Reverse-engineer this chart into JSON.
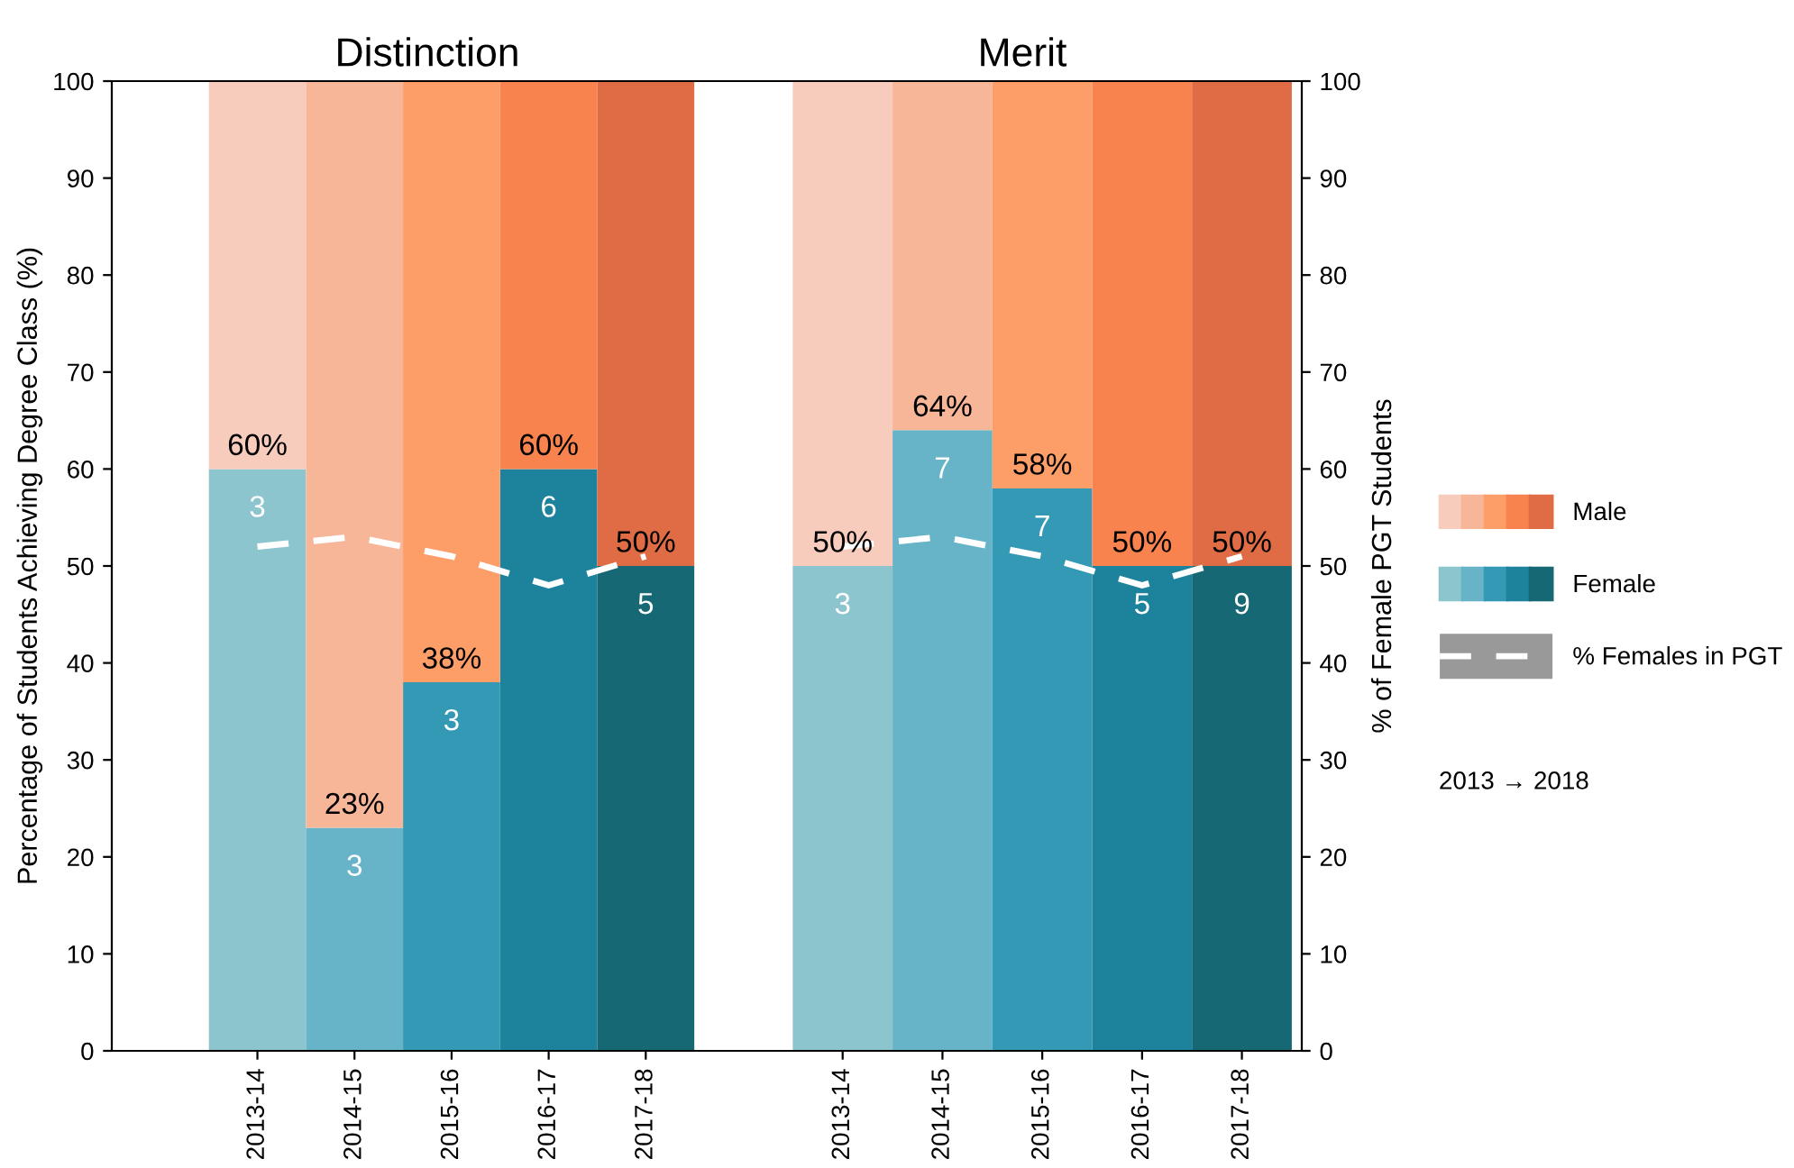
{
  "chart_data": [
    {
      "type": "bar",
      "title": "Distinction",
      "ylabel": "Percentage of Students Achieving Degree Class (%)",
      "stacked": true,
      "categories": [
        "2013-14",
        "2014-15",
        "2015-16",
        "2016-17",
        "2017-18"
      ],
      "ylim": [
        0,
        100
      ],
      "yticks": [
        0,
        10,
        20,
        30,
        40,
        50,
        60,
        70,
        80,
        90,
        100
      ],
      "grid": false,
      "series": [
        {
          "colors": [
            "#8dc5cf",
            "#67b4c8",
            "#3499b4",
            "#1d839c",
            "#166874"
          ],
          "values": [
            60,
            23,
            38,
            60,
            50
          ],
          "value_labels": [
            "60%",
            "23%",
            "38%",
            "60%",
            "50%"
          ]
        },
        {
          "colors": [
            "#f7ccbc",
            "#f8b699",
            "#fd9d68",
            "#f9834e",
            "#df6c44"
          ],
          "values": [
            40,
            77,
            62,
            40,
            50
          ]
        },
        {
          "type": "line",
          "color": "#ffffff",
          "line_style": "dashed",
          "values": [
            52,
            53,
            51,
            48,
            51
          ]
        }
      ],
      "annotations": [
        {
          "text": "3",
          "x": "2013-14",
          "y": 60
        },
        {
          "text": "3",
          "x": "2014-15",
          "y": 23
        },
        {
          "text": "3",
          "x": "2015-16",
          "y": 38
        },
        {
          "text": "6",
          "x": "2016-17",
          "y": 60
        },
        {
          "text": "5",
          "x": "2017-18",
          "y": 50
        }
      ]
    },
    {
      "type": "bar",
      "title": "Merit",
      "ylabel": "% of Female PGT Students",
      "stacked": true,
      "legend": "right",
      "categories": [
        "2013-14",
        "2014-15",
        "2015-16",
        "2016-17",
        "2017-18"
      ],
      "ylim": [
        0,
        100
      ],
      "yticks": [
        0,
        10,
        20,
        30,
        40,
        50,
        60,
        70,
        80,
        90,
        100
      ],
      "grid": false,
      "series": [
        {
          "name": "Female",
          "colors": [
            "#8dc5cf",
            "#67b4c8",
            "#3499b4",
            "#1d839c",
            "#166874"
          ],
          "values": [
            50,
            64,
            58,
            50,
            50
          ],
          "value_labels": [
            "50%",
            "64%",
            "58%",
            "50%",
            "50%"
          ]
        },
        {
          "name": "Male",
          "colors": [
            "#f7ccbc",
            "#f8b699",
            "#fd9d68",
            "#f9834e",
            "#df6c44"
          ],
          "values": [
            50,
            36,
            42,
            50,
            50
          ]
        },
        {
          "name": "% Females in PGT",
          "type": "line",
          "color": "#ffffff",
          "line_style": "dashed",
          "values": [
            52,
            53,
            51,
            48,
            51
          ]
        }
      ],
      "annotations": [
        {
          "text": "3",
          "x": "2013-14",
          "y": 50
        },
        {
          "text": "7",
          "x": "2014-15",
          "y": 64
        },
        {
          "text": "7",
          "x": "2015-16",
          "y": 58
        },
        {
          "text": "5",
          "x": "2016-17",
          "y": 50
        },
        {
          "text": "9",
          "x": "2017-18",
          "y": 50
        },
        "2013 → 2018"
      ]
    }
  ]
}
